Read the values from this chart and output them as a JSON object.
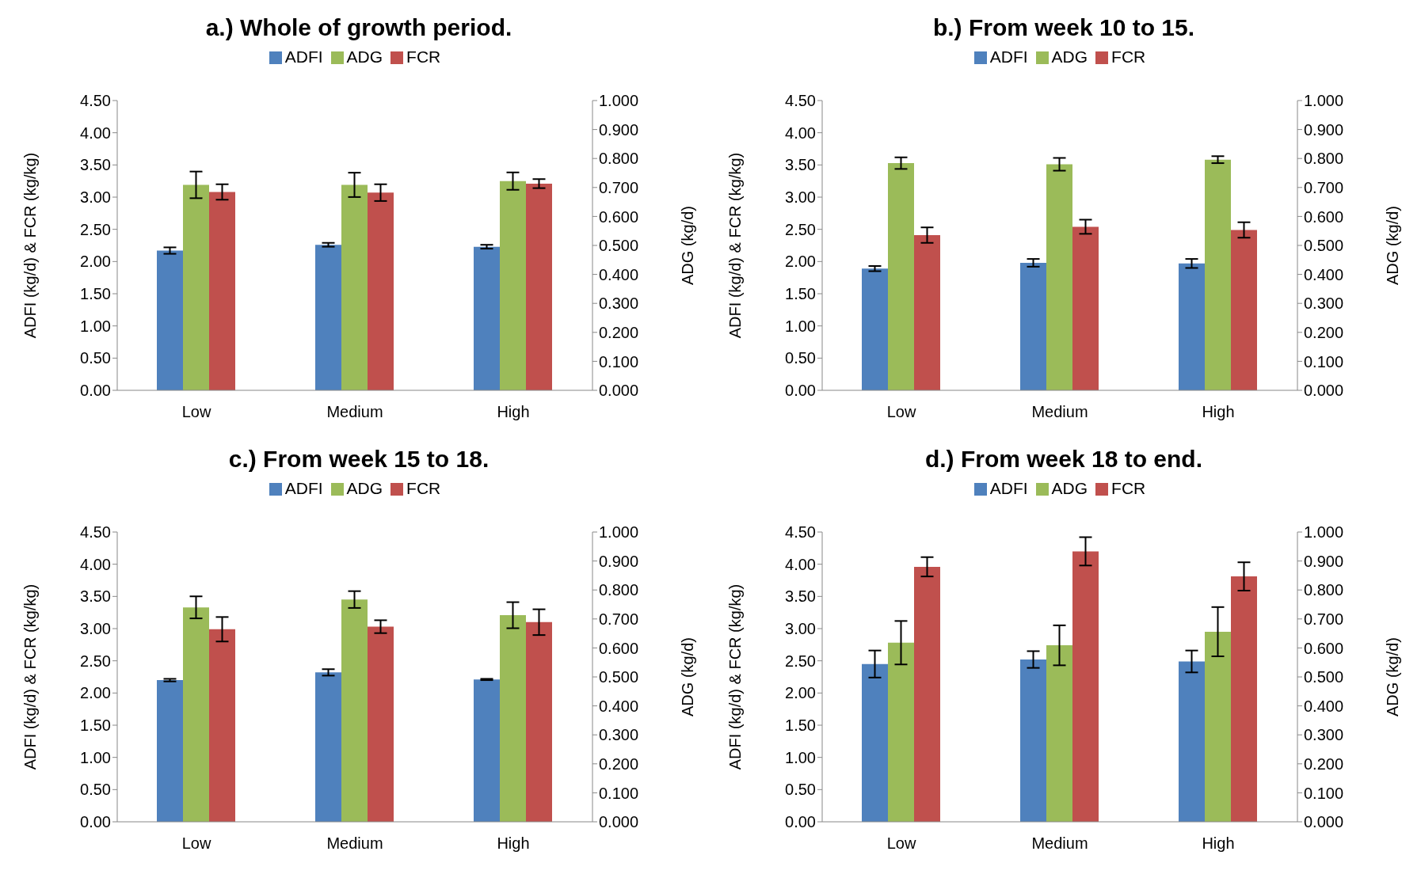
{
  "chart_data": [
    {
      "type": "bar",
      "title": "a.) Whole of growth period.",
      "ylabel": "ADFI (kg/d) & FCR (kg/kg)",
      "y2label": "ADG (kg/d)",
      "categories": [
        "Low",
        "Medium",
        "High"
      ],
      "legend": "top",
      "ylim": [
        0,
        4.5
      ],
      "yticks": [
        {
          "value": 0,
          "label": "0.00"
        },
        {
          "value": 0.5,
          "label": "0.50"
        },
        {
          "value": 1,
          "label": "1.00"
        },
        {
          "value": 1.5,
          "label": "1.50"
        },
        {
          "value": 2,
          "label": "2.00"
        },
        {
          "value": 2.5,
          "label": "2.50"
        },
        {
          "value": 3,
          "label": "3.00"
        },
        {
          "value": 3.5,
          "label": "3.50"
        },
        {
          "value": 4,
          "label": "4.00"
        },
        {
          "value": 4.5,
          "label": "4.50"
        }
      ],
      "y2lim": [
        0,
        1
      ],
      "y2ticks": [
        {
          "value": 0,
          "label": "0.000"
        },
        {
          "value": 0.1,
          "label": "0.100"
        },
        {
          "value": 0.2,
          "label": "0.200"
        },
        {
          "value": 0.3,
          "label": "0.300"
        },
        {
          "value": 0.4,
          "label": "0.400"
        },
        {
          "value": 0.5,
          "label": "0.500"
        },
        {
          "value": 0.6,
          "label": "0.600"
        },
        {
          "value": 0.7,
          "label": "0.700"
        },
        {
          "value": 0.8,
          "label": "0.800"
        },
        {
          "value": 0.9,
          "label": "0.900"
        },
        {
          "value": 1,
          "label": "1.000"
        }
      ],
      "series": [
        {
          "name": "ADFI",
          "color": "#4f81bd",
          "values": [
            2.17,
            2.26,
            2.23
          ],
          "errors": [
            0.05,
            0.03,
            0.03
          ]
        },
        {
          "name": "ADG",
          "color": "#9bbb59",
          "axis": "y2",
          "values": [
            0.709,
            0.709,
            0.722
          ],
          "errors": [
            0.046,
            0.042,
            0.03
          ]
        },
        {
          "name": "FCR",
          "color": "#c0504d",
          "values": [
            3.08,
            3.07,
            3.21
          ],
          "errors": [
            0.12,
            0.13,
            0.07
          ]
        }
      ]
    },
    {
      "type": "bar",
      "title": "b.) From week 10 to 15.",
      "ylabel": "ADFI (kg/d) & FCR (kg/kg)",
      "y2label": "ADG (kg/d)",
      "categories": [
        "Low",
        "Medium",
        "High"
      ],
      "legend": "top",
      "ylim": [
        0,
        4.5
      ],
      "yticks": [
        {
          "value": 0,
          "label": "0.00"
        },
        {
          "value": 0.5,
          "label": "0.50"
        },
        {
          "value": 1,
          "label": "1.00"
        },
        {
          "value": 1.5,
          "label": "1.50"
        },
        {
          "value": 2,
          "label": "2.00"
        },
        {
          "value": 2.5,
          "label": "2.50"
        },
        {
          "value": 3,
          "label": "3.00"
        },
        {
          "value": 3.5,
          "label": "3.50"
        },
        {
          "value": 4,
          "label": "4.00"
        },
        {
          "value": 4.5,
          "label": "4.50"
        }
      ],
      "y2lim": [
        0,
        1
      ],
      "y2ticks": [
        {
          "value": 0,
          "label": "0.000"
        },
        {
          "value": 0.1,
          "label": "0.100"
        },
        {
          "value": 0.2,
          "label": "0.200"
        },
        {
          "value": 0.3,
          "label": "0.300"
        },
        {
          "value": 0.4,
          "label": "0.400"
        },
        {
          "value": 0.5,
          "label": "0.500"
        },
        {
          "value": 0.6,
          "label": "0.600"
        },
        {
          "value": 0.7,
          "label": "0.700"
        },
        {
          "value": 0.8,
          "label": "0.800"
        },
        {
          "value": 0.9,
          "label": "0.900"
        },
        {
          "value": 1,
          "label": "1.000"
        }
      ],
      "series": [
        {
          "name": "ADFI",
          "color": "#4f81bd",
          "values": [
            1.89,
            1.98,
            1.97
          ],
          "errors": [
            0.04,
            0.06,
            0.07
          ]
        },
        {
          "name": "ADG",
          "color": "#9bbb59",
          "axis": "y2",
          "values": [
            0.784,
            0.78,
            0.796
          ],
          "errors": [
            0.02,
            0.022,
            0.012
          ]
        },
        {
          "name": "FCR",
          "color": "#c0504d",
          "values": [
            2.41,
            2.54,
            2.49
          ],
          "errors": [
            0.12,
            0.11,
            0.12
          ]
        }
      ]
    },
    {
      "type": "bar",
      "title": "c.) From week 15 to 18.",
      "ylabel": "ADFI (kg/d) & FCR (kg/kg)",
      "y2label": "ADG (kg/d)",
      "categories": [
        "Low",
        "Medium",
        "High"
      ],
      "legend": "top",
      "ylim": [
        0,
        4.5
      ],
      "yticks": [
        {
          "value": 0,
          "label": "0.00"
        },
        {
          "value": 0.5,
          "label": "0.50"
        },
        {
          "value": 1,
          "label": "1.00"
        },
        {
          "value": 1.5,
          "label": "1.50"
        },
        {
          "value": 2,
          "label": "2.00"
        },
        {
          "value": 2.5,
          "label": "2.50"
        },
        {
          "value": 3,
          "label": "3.00"
        },
        {
          "value": 3.5,
          "label": "3.50"
        },
        {
          "value": 4,
          "label": "4.00"
        },
        {
          "value": 4.5,
          "label": "4.50"
        }
      ],
      "y2lim": [
        0,
        1
      ],
      "y2ticks": [
        {
          "value": 0,
          "label": "0.000"
        },
        {
          "value": 0.1,
          "label": "0.100"
        },
        {
          "value": 0.2,
          "label": "0.200"
        },
        {
          "value": 0.3,
          "label": "0.300"
        },
        {
          "value": 0.4,
          "label": "0.400"
        },
        {
          "value": 0.5,
          "label": "0.500"
        },
        {
          "value": 0.6,
          "label": "0.600"
        },
        {
          "value": 0.7,
          "label": "0.700"
        },
        {
          "value": 0.8,
          "label": "0.800"
        },
        {
          "value": 0.9,
          "label": "0.900"
        },
        {
          "value": 1,
          "label": "1.000"
        }
      ],
      "series": [
        {
          "name": "ADFI",
          "color": "#4f81bd",
          "values": [
            2.2,
            2.32,
            2.21
          ],
          "errors": [
            0.02,
            0.05,
            0.01
          ]
        },
        {
          "name": "ADG",
          "color": "#9bbb59",
          "axis": "y2",
          "values": [
            0.74,
            0.767,
            0.713
          ],
          "errors": [
            0.038,
            0.029,
            0.045
          ]
        },
        {
          "name": "FCR",
          "color": "#c0504d",
          "values": [
            2.99,
            3.03,
            3.1
          ],
          "errors": [
            0.19,
            0.1,
            0.2
          ]
        }
      ]
    },
    {
      "type": "bar",
      "title": "d.) From week 18 to end.",
      "ylabel": "ADFI (kg/d) & FCR (kg/kg)",
      "y2label": "ADG (kg/d)",
      "categories": [
        "Low",
        "Medium",
        "High"
      ],
      "legend": "top",
      "ylim": [
        0,
        4.5
      ],
      "yticks": [
        {
          "value": 0,
          "label": "0.00"
        },
        {
          "value": 0.5,
          "label": "0.50"
        },
        {
          "value": 1,
          "label": "1.00"
        },
        {
          "value": 1.5,
          "label": "1.50"
        },
        {
          "value": 2,
          "label": "2.00"
        },
        {
          "value": 2.5,
          "label": "2.50"
        },
        {
          "value": 3,
          "label": "3.00"
        },
        {
          "value": 3.5,
          "label": "3.50"
        },
        {
          "value": 4,
          "label": "4.00"
        },
        {
          "value": 4.5,
          "label": "4.50"
        }
      ],
      "y2lim": [
        0,
        1
      ],
      "y2ticks": [
        {
          "value": 0,
          "label": "0.000"
        },
        {
          "value": 0.1,
          "label": "0.100"
        },
        {
          "value": 0.2,
          "label": "0.200"
        },
        {
          "value": 0.3,
          "label": "0.300"
        },
        {
          "value": 0.4,
          "label": "0.400"
        },
        {
          "value": 0.5,
          "label": "0.500"
        },
        {
          "value": 0.6,
          "label": "0.600"
        },
        {
          "value": 0.7,
          "label": "0.700"
        },
        {
          "value": 0.8,
          "label": "0.800"
        },
        {
          "value": 0.9,
          "label": "0.900"
        },
        {
          "value": 1,
          "label": "1.000"
        }
      ],
      "series": [
        {
          "name": "ADFI",
          "color": "#4f81bd",
          "values": [
            2.45,
            2.52,
            2.49
          ],
          "errors": [
            0.21,
            0.13,
            0.17
          ]
        },
        {
          "name": "ADG",
          "color": "#9bbb59",
          "axis": "y2",
          "values": [
            0.618,
            0.609,
            0.656
          ],
          "errors": [
            0.075,
            0.069,
            0.085
          ]
        },
        {
          "name": "FCR",
          "color": "#c0504d",
          "values": [
            3.96,
            4.2,
            3.81
          ],
          "errors": [
            0.15,
            0.22,
            0.22
          ]
        }
      ]
    }
  ]
}
